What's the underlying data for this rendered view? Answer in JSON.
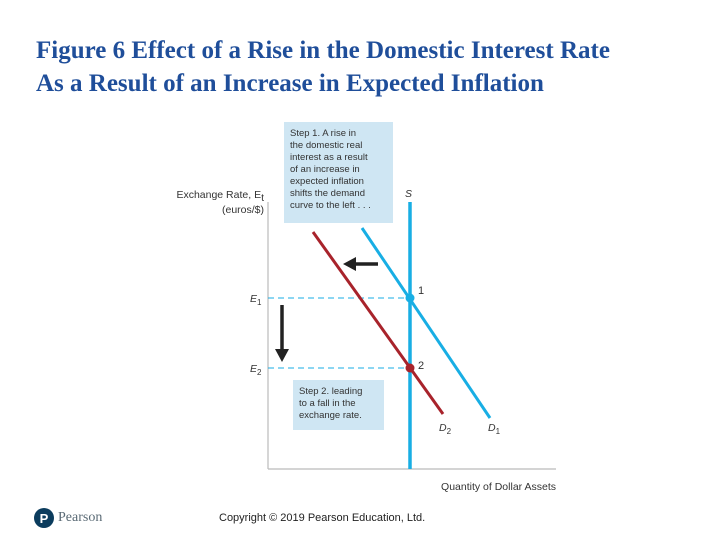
{
  "slide": {
    "title_line1": "Figure 6 Effect of a Rise in the Domestic Interest Rate",
    "title_line2": "As a Result of an Increase in Expected Inflation",
    "copyright": "Copyright © 2019 Pearson Education, Ltd.",
    "logo_text": "Pearson",
    "logo_letter": "P"
  },
  "diagram": {
    "y_axis_label_line1": "Exchange Rate, E",
    "y_axis_label_subscript": "t",
    "y_axis_label_line2": "(euros/$)",
    "x_axis_label": "Quantity of Dollar Assets",
    "e1_label": "E",
    "e1_subscript": "1",
    "e2_label": "E",
    "e2_subscript": "2",
    "supply_label": "S",
    "d1_label": "D",
    "d1_subscript": "1",
    "d2_label": "D",
    "d2_subscript": "2",
    "point1_label": "1",
    "point2_label": "2",
    "step1_lines": [
      "Step 1. A rise in",
      "the domestic real",
      "interest as a result",
      "of an increase in",
      "expected inflation",
      "shifts the demand",
      "curve to the left . . ."
    ],
    "step2_lines": [
      "Step 2. leading",
      "to a fall in the",
      "exchange rate."
    ],
    "colors": {
      "supply": "#18aee4",
      "d1": "#18aee4",
      "d2": "#a8232b",
      "point1": "#18aee4",
      "point2": "#a8232b",
      "note_box": "#cfe6f3",
      "arrow": "#222222",
      "dashed": "#18aee4",
      "title": "#1f4e9a"
    }
  }
}
